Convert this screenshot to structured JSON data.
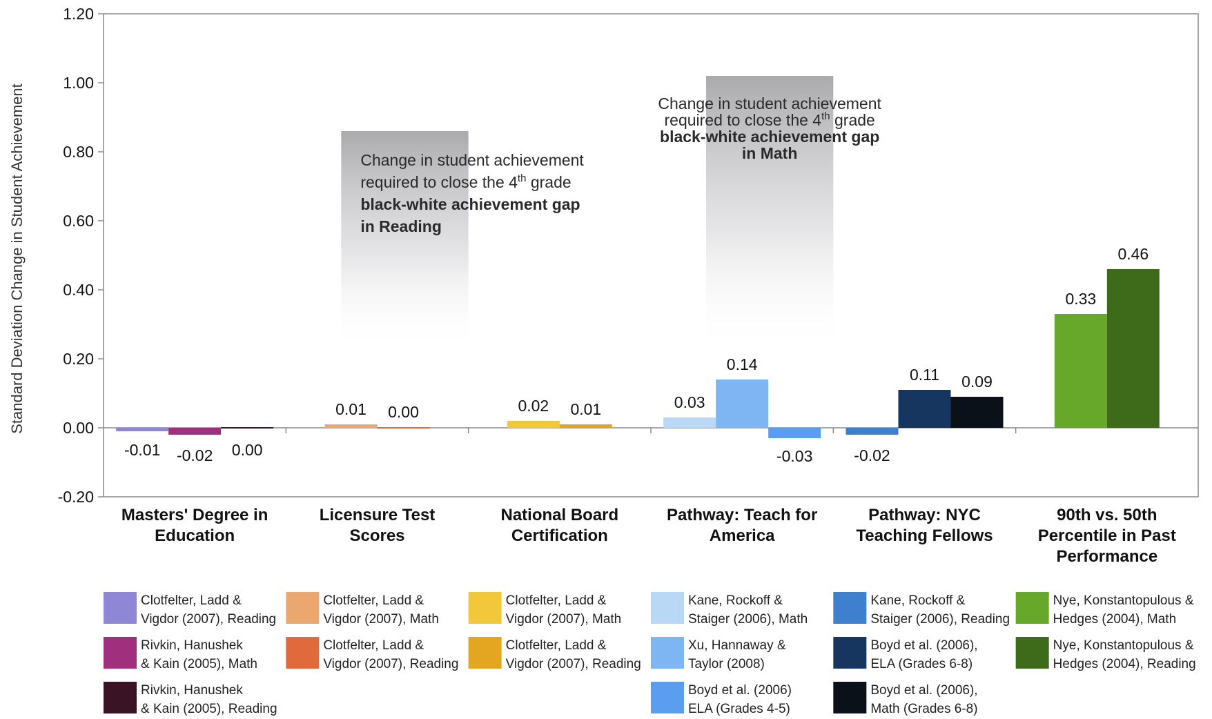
{
  "chart_data": {
    "type": "bar",
    "ylabel": "Standard Deviation Change in Student Achievement",
    "ylim": [
      -0.2,
      1.2
    ],
    "yticks": [
      "1.20",
      "1.00",
      "0.80",
      "0.60",
      "0.40",
      "0.20",
      "0.00",
      "-0.20"
    ],
    "categories": [
      {
        "lines": [
          "Masters' Degree in",
          "Education"
        ]
      },
      {
        "lines": [
          "Licensure Test",
          "Scores"
        ]
      },
      {
        "lines": [
          "National Board",
          "Certification"
        ]
      },
      {
        "lines": [
          "Pathway: Teach for",
          "America"
        ]
      },
      {
        "lines": [
          "Pathway: NYC",
          "Teaching Fellows"
        ]
      },
      {
        "lines": [
          "90th vs. 50th",
          "Percentile in Past",
          "Performance"
        ]
      }
    ],
    "bars": [
      {
        "category": 0,
        "value": -0.01,
        "label": "-0.01",
        "color": "#8f86d6",
        "legend": [
          "Clotfelter, Ladd &",
          "Vigdor (2007), Reading"
        ]
      },
      {
        "category": 0,
        "value": -0.02,
        "label": "-0.02",
        "color": "#a0307e",
        "legend": [
          "Rivkin, Hanushek",
          "& Kain (2005), Math"
        ]
      },
      {
        "category": 0,
        "value": 0.0,
        "label": "0.00",
        "color": "#3a1424",
        "legend": [
          "Rivkin, Hanushek",
          "& Kain (2005), Reading"
        ]
      },
      {
        "category": 1,
        "value": 0.01,
        "label": "0.01",
        "color": "#eaa870",
        "legend": [
          "Clotfelter, Ladd &",
          "Vigdor (2007), Math"
        ]
      },
      {
        "category": 1,
        "value": 0.0,
        "label": "0.00",
        "color": "#e06a3c",
        "legend": [
          "Clotfelter, Ladd &",
          "Vigdor (2007), Reading"
        ]
      },
      {
        "category": 2,
        "value": 0.02,
        "label": "0.02",
        "color": "#f2c83a",
        "legend": [
          "Clotfelter, Ladd &",
          "Vigdor (2007), Math"
        ]
      },
      {
        "category": 2,
        "value": 0.01,
        "label": "0.01",
        "color": "#e4a620",
        "legend": [
          "Clotfelter, Ladd &",
          "Vigdor (2007), Reading"
        ]
      },
      {
        "category": 3,
        "value": 0.03,
        "label": "0.03",
        "color": "#b9d8f6",
        "legend": [
          "Kane, Rockoff &",
          "Staiger (2006), Math"
        ]
      },
      {
        "category": 3,
        "value": 0.14,
        "label": "0.14",
        "color": "#7db6f2",
        "legend": [
          "Xu, Hannaway &",
          "Taylor (2008)"
        ]
      },
      {
        "category": 3,
        "value": -0.03,
        "label": "-0.03",
        "color": "#5b9ef0",
        "legend": [
          "Boyd et al. (2006)",
          "ELA (Grades 4-5)"
        ]
      },
      {
        "category": 4,
        "value": -0.02,
        "label": "-0.02",
        "color": "#3e7fce",
        "legend": [
          "Kane, Rockoff &",
          "Staiger (2006), Reading"
        ]
      },
      {
        "category": 4,
        "value": 0.11,
        "label": "0.11",
        "color": "#17365f",
        "legend": [
          "Boyd et al. (2006),",
          "ELA (Grades 6-8)"
        ]
      },
      {
        "category": 4,
        "value": 0.09,
        "label": "0.09",
        "color": "#0a1118",
        "legend": [
          "Boyd et al. (2006),",
          "Math (Grades 6-8)"
        ]
      },
      {
        "category": 5,
        "value": 0.33,
        "label": "0.33",
        "color": "#67a82a",
        "legend": [
          "Nye, Konstantopulous &",
          "Hedges (2004), Math"
        ]
      },
      {
        "category": 5,
        "value": 0.46,
        "label": "0.46",
        "color": "#3d6b1a",
        "legend": [
          "Nye, Konstantopulous &",
          "Hedges (2004), Reading"
        ]
      }
    ],
    "gap_boxes": [
      {
        "top_value": 0.86,
        "lines": [
          {
            "text": "Change in student achievement",
            "bold": false
          },
          {
            "text": "required to close the 4th grade",
            "bold": false,
            "pre": "required to close the 4",
            "sup": "th",
            "post": " grade"
          },
          {
            "text": "black-white achievement gap",
            "bold": true
          },
          {
            "text": "in Reading",
            "bold": true
          }
        ]
      },
      {
        "top_value": 1.02,
        "lines": [
          {
            "text": "Change in student achievement",
            "bold": false
          },
          {
            "text": "required to close the 4th grade",
            "bold": false,
            "pre": "required to close the 4",
            "sup": "th",
            "post": " grade"
          },
          {
            "text": "black-white achievement gap",
            "bold": true
          },
          {
            "text": "in Math",
            "bold": true
          }
        ]
      }
    ],
    "legend_position": "bottom",
    "grid": false
  }
}
